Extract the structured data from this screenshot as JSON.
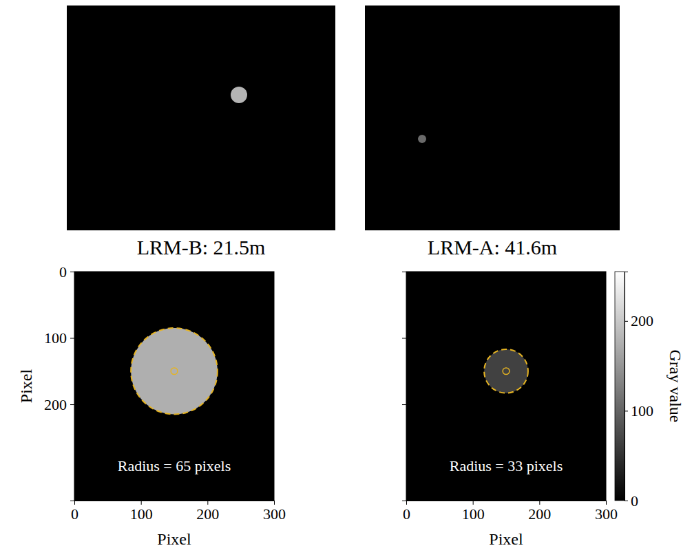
{
  "chart_data": [
    {
      "type": "image",
      "annotation": "LRM-B: 21.5m"
    },
    {
      "type": "image",
      "annotation": "LRM-A: 41.6m"
    },
    {
      "type": "image",
      "xlabel": "Pixel",
      "ylabel": "Pixel",
      "xlim": [
        0,
        300
      ],
      "ylim": [
        345,
        0
      ],
      "xticks": [
        0,
        100,
        200,
        300
      ],
      "yticks": [
        0,
        100,
        200
      ],
      "center": {
        "x": 150,
        "y": 150
      },
      "radius": 65,
      "inner_radius": 5,
      "gray_value": 175,
      "annotation": "Radius = 65 pixels",
      "color": "#e6b422"
    },
    {
      "type": "image",
      "xlabel": "Pixel",
      "xlim": [
        0,
        300
      ],
      "ylim": [
        345,
        0
      ],
      "xticks": [
        0,
        100,
        200,
        300
      ],
      "yticks": [
        0,
        100,
        200
      ],
      "tick_labels": "x",
      "center": {
        "x": 150,
        "y": 150
      },
      "radius": 33,
      "inner_radius": 5,
      "gray_value": 65,
      "annotation": "Radius = 33 pixels",
      "color": "#e6b422",
      "colorbar": {
        "label": "Gray value",
        "range": [
          0,
          255
        ],
        "ticks": [
          0,
          100,
          200
        ]
      }
    }
  ]
}
